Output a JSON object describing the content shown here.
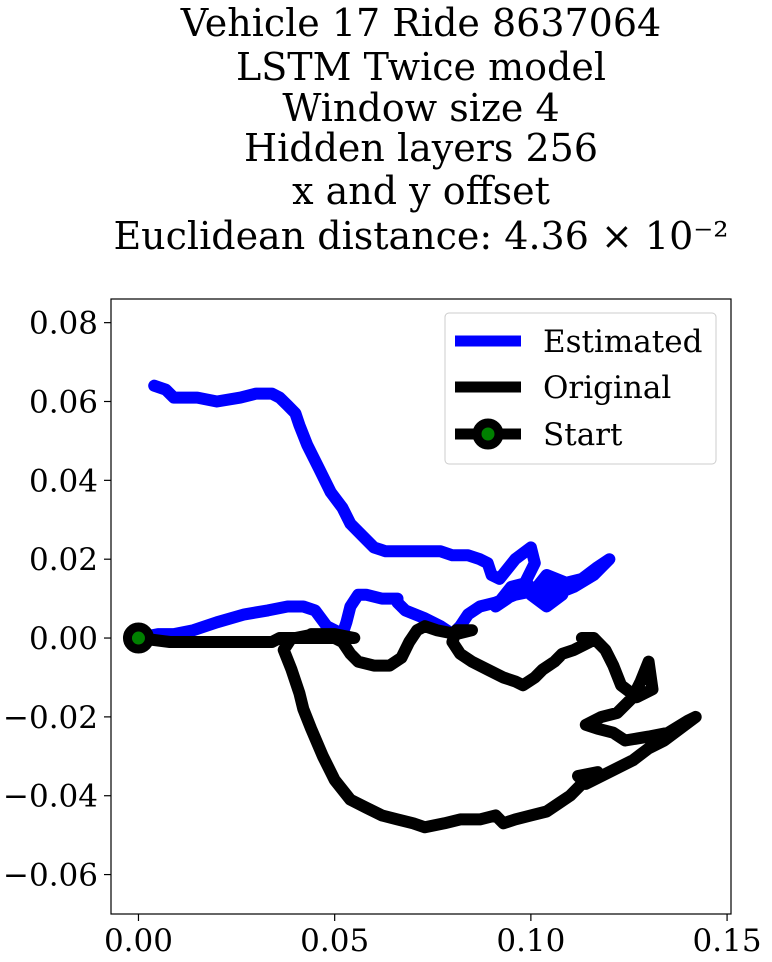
{
  "chart_data": {
    "type": "line",
    "title_lines": [
      "Vehicle 17 Ride 8637064",
      "LSTM Twice model",
      "Window size 4",
      "Hidden layers 256",
      "x and y offset",
      "Euclidean distance: 4.36 × 10⁻²"
    ],
    "xlabel": "",
    "ylabel": "",
    "xlim": [
      -0.007,
      0.151
    ],
    "ylim": [
      -0.07,
      0.086
    ],
    "x_ticks": [
      0.0,
      0.05,
      0.1,
      0.15
    ],
    "x_tick_labels": [
      "0.00",
      "0.05",
      "0.10",
      "0.15"
    ],
    "y_ticks": [
      -0.06,
      -0.04,
      -0.02,
      0.0,
      0.02,
      0.04,
      0.06,
      0.08
    ],
    "y_tick_labels": [
      "−0.06",
      "−0.04",
      "−0.02",
      "0.00",
      "0.02",
      "0.04",
      "0.06",
      "0.08"
    ],
    "grid": false,
    "legend_position": "top-right",
    "series": [
      {
        "name": "Estimated",
        "color": "#0000ff",
        "points": [
          [
            0.004,
            0.064
          ],
          [
            0.007,
            0.063
          ],
          [
            0.009,
            0.061
          ],
          [
            0.015,
            0.061
          ],
          [
            0.02,
            0.06
          ],
          [
            0.026,
            0.061
          ],
          [
            0.03,
            0.062
          ],
          [
            0.034,
            0.062
          ],
          [
            0.036,
            0.061
          ],
          [
            0.038,
            0.059
          ],
          [
            0.04,
            0.057
          ],
          [
            0.041,
            0.054
          ],
          [
            0.043,
            0.049
          ],
          [
            0.046,
            0.043
          ],
          [
            0.049,
            0.037
          ],
          [
            0.052,
            0.033
          ],
          [
            0.054,
            0.029
          ],
          [
            0.057,
            0.026
          ],
          [
            0.06,
            0.023
          ],
          [
            0.063,
            0.022
          ],
          [
            0.067,
            0.022
          ],
          [
            0.072,
            0.022
          ],
          [
            0.077,
            0.022
          ],
          [
            0.08,
            0.021
          ],
          [
            0.084,
            0.021
          ],
          [
            0.087,
            0.02
          ],
          [
            0.089,
            0.019
          ],
          [
            0.09,
            0.016
          ],
          [
            0.092,
            0.015
          ],
          [
            0.096,
            0.02
          ],
          [
            0.1,
            0.023
          ],
          [
            0.101,
            0.019
          ],
          [
            0.098,
            0.013
          ],
          [
            0.094,
            0.01
          ],
          [
            0.091,
            0.008
          ],
          [
            0.095,
            0.013
          ],
          [
            0.099,
            0.014
          ],
          [
            0.102,
            0.01
          ],
          [
            0.105,
            0.013
          ],
          [
            0.108,
            0.011
          ],
          [
            0.104,
            0.008
          ],
          [
            0.1,
            0.011
          ],
          [
            0.104,
            0.016
          ],
          [
            0.109,
            0.014
          ],
          [
            0.113,
            0.015
          ],
          [
            0.117,
            0.018
          ],
          [
            0.12,
            0.02
          ],
          [
            0.116,
            0.016
          ],
          [
            0.111,
            0.013
          ],
          [
            0.106,
            0.011
          ],
          [
            0.101,
            0.012
          ],
          [
            0.096,
            0.011
          ],
          [
            0.091,
            0.009
          ],
          [
            0.087,
            0.008
          ],
          [
            0.084,
            0.006
          ],
          [
            0.082,
            0.003
          ],
          [
            0.08,
            0.001
          ],
          [
            0.077,
            0.003
          ],
          [
            0.073,
            0.005
          ],
          [
            0.068,
            0.007
          ],
          [
            0.066,
            0.009
          ],
          [
            0.066,
            0.01
          ],
          [
            0.062,
            0.01
          ],
          [
            0.058,
            0.011
          ],
          [
            0.056,
            0.011
          ],
          [
            0.054,
            0.008
          ],
          [
            0.053,
            0.004
          ],
          [
            0.052,
            0.001
          ],
          [
            0.048,
            0.003
          ],
          [
            0.045,
            0.007
          ],
          [
            0.042,
            0.008
          ],
          [
            0.038,
            0.008
          ],
          [
            0.033,
            0.007
          ],
          [
            0.027,
            0.006
          ],
          [
            0.02,
            0.004
          ],
          [
            0.014,
            0.002
          ],
          [
            0.009,
            0.001
          ],
          [
            0.005,
            0.001
          ],
          [
            0.0,
            0.0
          ]
        ]
      },
      {
        "name": "Original",
        "color": "#000000",
        "points": [
          [
            0.0,
            0.0
          ],
          [
            0.008,
            -0.001
          ],
          [
            0.014,
            -0.001
          ],
          [
            0.022,
            -0.001
          ],
          [
            0.03,
            -0.001
          ],
          [
            0.034,
            -0.001
          ],
          [
            0.036,
            0.0
          ],
          [
            0.04,
            0.0
          ],
          [
            0.045,
            0.001
          ],
          [
            0.05,
            0.001
          ],
          [
            0.055,
            0.0
          ],
          [
            0.043,
            0.0
          ],
          [
            0.039,
            0.0
          ],
          [
            0.037,
            -0.003
          ],
          [
            0.039,
            -0.008
          ],
          [
            0.041,
            -0.014
          ],
          [
            0.042,
            -0.018
          ],
          [
            0.044,
            -0.023
          ],
          [
            0.047,
            -0.03
          ],
          [
            0.05,
            -0.036
          ],
          [
            0.054,
            -0.041
          ],
          [
            0.058,
            -0.043
          ],
          [
            0.062,
            -0.045
          ],
          [
            0.066,
            -0.046
          ],
          [
            0.07,
            -0.047
          ],
          [
            0.073,
            -0.048
          ],
          [
            0.078,
            -0.047
          ],
          [
            0.082,
            -0.046
          ],
          [
            0.087,
            -0.046
          ],
          [
            0.091,
            -0.045
          ],
          [
            0.093,
            -0.047
          ],
          [
            0.096,
            -0.046
          ],
          [
            0.1,
            -0.045
          ],
          [
            0.104,
            -0.044
          ],
          [
            0.107,
            -0.042
          ],
          [
            0.11,
            -0.04
          ],
          [
            0.112,
            -0.038
          ],
          [
            0.114,
            -0.036
          ],
          [
            0.117,
            -0.034
          ],
          [
            0.112,
            -0.035
          ],
          [
            0.114,
            -0.037
          ],
          [
            0.118,
            -0.035
          ],
          [
            0.122,
            -0.033
          ],
          [
            0.126,
            -0.031
          ],
          [
            0.13,
            -0.028
          ],
          [
            0.134,
            -0.026
          ],
          [
            0.138,
            -0.023
          ],
          [
            0.142,
            -0.02
          ],
          [
            0.14,
            -0.021
          ],
          [
            0.135,
            -0.024
          ],
          [
            0.13,
            -0.025
          ],
          [
            0.124,
            -0.026
          ],
          [
            0.121,
            -0.024
          ],
          [
            0.117,
            -0.023
          ],
          [
            0.114,
            -0.022
          ],
          [
            0.118,
            -0.02
          ],
          [
            0.122,
            -0.019
          ],
          [
            0.126,
            -0.015
          ],
          [
            0.128,
            -0.011
          ],
          [
            0.13,
            -0.006
          ],
          [
            0.131,
            -0.013
          ],
          [
            0.127,
            -0.015
          ],
          [
            0.123,
            -0.012
          ],
          [
            0.121,
            -0.007
          ],
          [
            0.119,
            -0.003
          ],
          [
            0.116,
            0.0
          ],
          [
            0.113,
            0.0
          ],
          [
            0.115,
            -0.001
          ],
          [
            0.111,
            -0.003
          ],
          [
            0.108,
            -0.004
          ],
          [
            0.106,
            -0.006
          ],
          [
            0.103,
            -0.008
          ],
          [
            0.101,
            -0.01
          ],
          [
            0.098,
            -0.012
          ],
          [
            0.096,
            -0.011
          ],
          [
            0.093,
            -0.01
          ],
          [
            0.089,
            -0.008
          ],
          [
            0.085,
            -0.006
          ],
          [
            0.082,
            -0.004
          ],
          [
            0.08,
            -0.001
          ],
          [
            0.081,
            0.002
          ],
          [
            0.085,
            0.002
          ],
          [
            0.081,
            0.001
          ],
          [
            0.076,
            0.002
          ],
          [
            0.073,
            0.003
          ],
          [
            0.071,
            0.002
          ],
          [
            0.069,
            -0.001
          ],
          [
            0.067,
            -0.005
          ],
          [
            0.064,
            -0.007
          ],
          [
            0.06,
            -0.007
          ],
          [
            0.056,
            -0.006
          ],
          [
            0.054,
            -0.004
          ],
          [
            0.052,
            -0.001
          ],
          [
            0.048,
            0.001
          ],
          [
            0.044,
            0.001
          ]
        ]
      }
    ],
    "start_point": {
      "name": "Start",
      "x": 0.0,
      "y": 0.0,
      "edge_color": "#000000",
      "face_color": "#008000"
    }
  }
}
